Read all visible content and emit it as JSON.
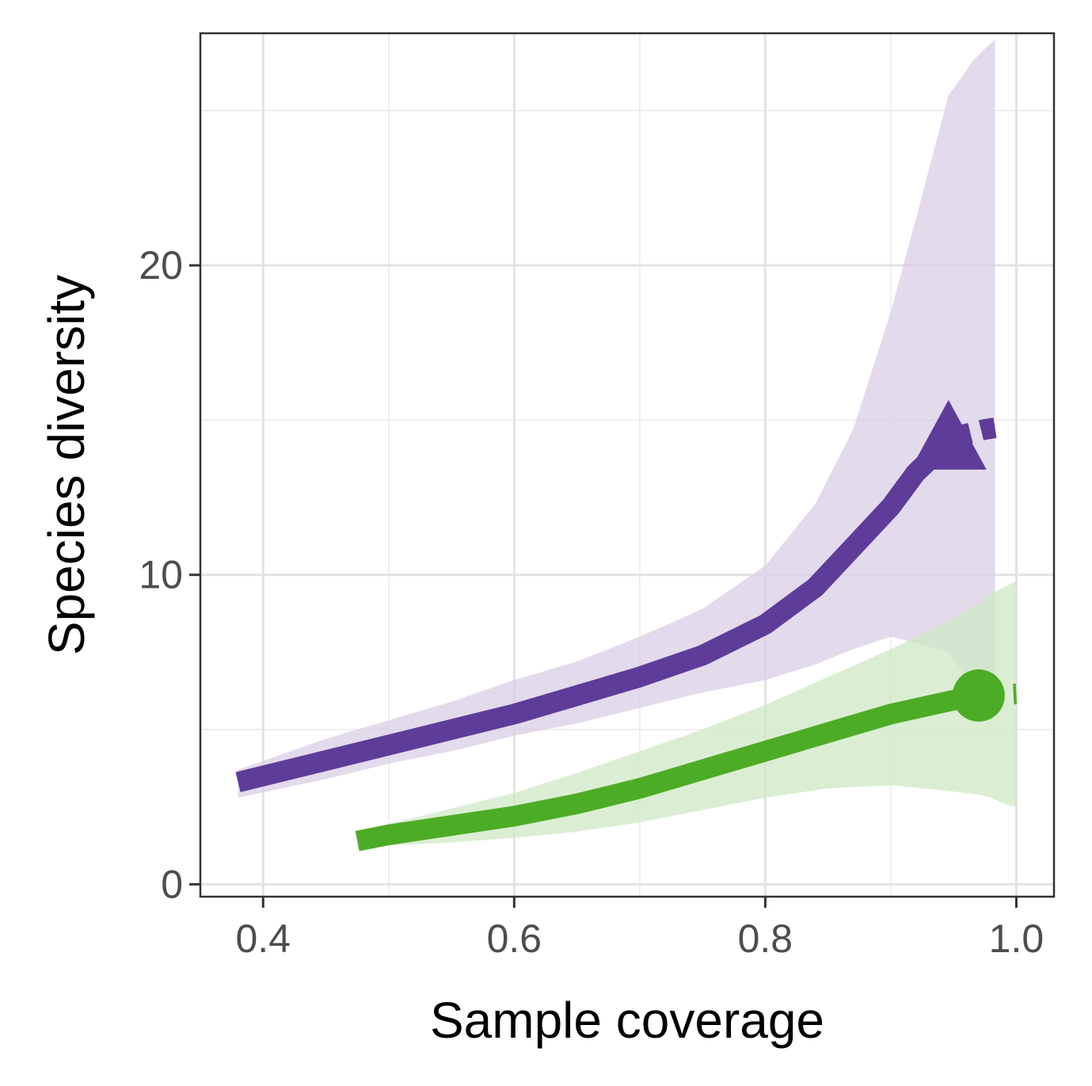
{
  "chart_data": {
    "type": "line",
    "title": "",
    "xlabel": "Sample coverage",
    "ylabel": "Species diversity",
    "xlim": [
      0.35,
      1.03
    ],
    "ylim": [
      -0.4,
      27.5
    ],
    "x_ticks": [
      0.4,
      0.6,
      0.8,
      1.0
    ],
    "x_tick_labels": [
      "0.4",
      "0.6",
      "0.8",
      "1.0"
    ],
    "y_ticks": [
      0,
      10,
      20
    ],
    "y_tick_labels": [
      "0",
      "10",
      "20"
    ],
    "x_minor_gridlines": [
      0.5,
      0.7,
      0.9
    ],
    "y_minor_gridlines": [
      5,
      15,
      25
    ],
    "grid": true,
    "legend": "none",
    "series": [
      {
        "name": "purple",
        "color": "#5e3c99",
        "band_color": "#d9cde6",
        "marker": "triangle",
        "x": [
          0.38,
          0.45,
          0.5,
          0.55,
          0.6,
          0.65,
          0.7,
          0.75,
          0.8,
          0.84,
          0.87,
          0.9,
          0.92,
          0.946
        ],
        "y": [
          3.3,
          4.0,
          4.5,
          5.0,
          5.5,
          6.1,
          6.7,
          7.4,
          8.4,
          9.6,
          10.9,
          12.2,
          13.3,
          14.3
        ],
        "lower": [
          2.8,
          3.4,
          3.9,
          4.3,
          4.8,
          5.2,
          5.7,
          6.2,
          6.6,
          7.1,
          7.6,
          8.0,
          7.8,
          7.5
        ],
        "upper": [
          3.7,
          4.7,
          5.3,
          5.9,
          6.6,
          7.2,
          8.0,
          8.9,
          10.3,
          12.3,
          14.7,
          18.5,
          21.5,
          25.5
        ],
        "extrapolation": {
          "x": [
            0.946,
            0.955,
            0.965,
            0.975,
            0.983
          ],
          "y": [
            14.3,
            14.5,
            14.6,
            14.7,
            14.75
          ],
          "lower": [
            7.5,
            7.0,
            6.5,
            6.0,
            5.8
          ],
          "upper": [
            25.5,
            26.0,
            26.6,
            27.0,
            27.3
          ]
        },
        "reference_point": {
          "x": 0.946,
          "y": 14.3
        }
      },
      {
        "name": "green",
        "color": "#4dac26",
        "band_color": "#cfe8c6",
        "marker": "circle",
        "x": [
          0.475,
          0.5,
          0.55,
          0.6,
          0.65,
          0.7,
          0.75,
          0.8,
          0.85,
          0.9,
          0.95,
          0.97
        ],
        "y": [
          1.4,
          1.6,
          1.9,
          2.2,
          2.6,
          3.1,
          3.7,
          4.3,
          4.9,
          5.5,
          5.95,
          6.1
        ],
        "lower": [
          1.2,
          1.25,
          1.35,
          1.5,
          1.7,
          2.0,
          2.4,
          2.8,
          3.1,
          3.2,
          3.0,
          2.9
        ],
        "upper": [
          1.6,
          1.95,
          2.45,
          2.95,
          3.6,
          4.3,
          5.0,
          5.8,
          6.7,
          7.6,
          8.6,
          9.1
        ],
        "extrapolation": {
          "x": [
            0.97,
            0.98,
            0.99,
            1.0
          ],
          "y": [
            6.1,
            6.12,
            6.13,
            6.15
          ],
          "lower": [
            2.9,
            2.8,
            2.6,
            2.5
          ],
          "upper": [
            9.1,
            9.4,
            9.6,
            9.8
          ]
        },
        "reference_point": {
          "x": 0.97,
          "y": 6.1
        }
      }
    ]
  }
}
